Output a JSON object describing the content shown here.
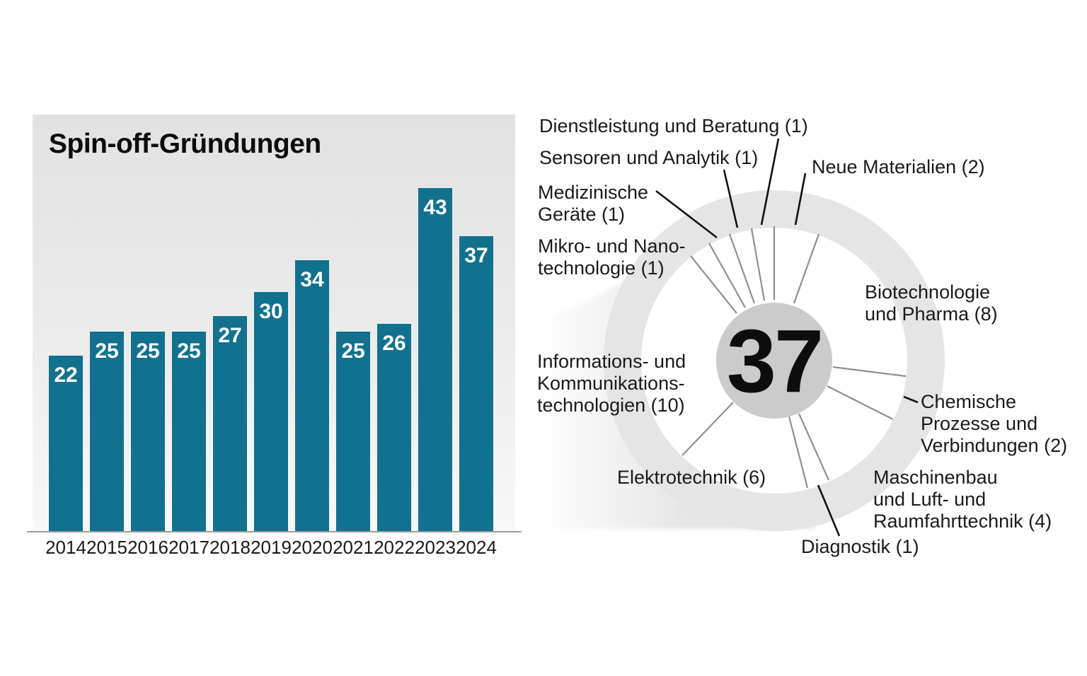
{
  "bar_chart": {
    "title": "Spin-off-Gründungen"
  },
  "donut": {
    "center_value": "37",
    "labels": {
      "dienstleistung": "Dienstleistung und Beratung (1)",
      "sensoren": "Sensoren und Analytik (1)",
      "medizinische": "Medizinische\nGeräte (1)",
      "mikro": "Mikro- und Nano-\ntechnologie (1)",
      "neue_materialien": "Neue Materialien (2)",
      "biotechnologie": "Biotechnologie\nund Pharma (8)",
      "informations": "Informations- und\nKommunikations-\ntechnologien (10)",
      "elektrotechnik": "Elektrotechnik (6)",
      "chemische": "Chemische\nProzesse und\nVerbindungen (2)",
      "maschinenbau": "Maschinenbau\nund Luft- und\nRaumfahrttechnik (4)",
      "diagnostik": "Diagnostik (1)"
    }
  },
  "colors": {
    "bar": "#11718e",
    "ring": "#e5e5e5",
    "center_circle": "#cbcbcb",
    "spoke": "#8f8f8f",
    "pointer": "#111111",
    "text": "#1a1a1a"
  },
  "chart_data": [
    {
      "type": "bar",
      "title": "Spin-off-Gründungen",
      "categories": [
        "2014",
        "2015",
        "2016",
        "2017",
        "2018",
        "2019",
        "2020",
        "2021",
        "2022",
        "2023",
        "2024"
      ],
      "values": [
        22,
        25,
        25,
        25,
        27,
        30,
        34,
        25,
        26,
        43,
        37
      ],
      "xlabel": "",
      "ylabel": "",
      "ylim": [
        0,
        45
      ],
      "grid": false,
      "value_labels": "white, bold, inside top of each bar",
      "bar_color": "#11718e",
      "background": "light gray vertical gradient panel"
    },
    {
      "type": "pie",
      "title": "",
      "center_label": "37",
      "total": 37,
      "layout": "donut ring with thin radial spokes; segments clockwise from 12 o'clock; gray comet tail fading to the left",
      "segments": [
        {
          "label": "Neue Materialien",
          "value": 2
        },
        {
          "label": "Biotechnologie und Pharma",
          "value": 8
        },
        {
          "label": "Chemische Prozesse und Verbindungen",
          "value": 2
        },
        {
          "label": "Maschinenbau und Luft- und Raumfahrttechnik",
          "value": 4
        },
        {
          "label": "Diagnostik",
          "value": 1
        },
        {
          "label": "Elektrotechnik",
          "value": 6
        },
        {
          "label": "Informations- und Kommunikationstechnologien",
          "value": 10
        },
        {
          "label": "Mikro- und Nanotechnologie",
          "value": 1
        },
        {
          "label": "Medizinische Geräte",
          "value": 1
        },
        {
          "label": "Sensoren und Analytik",
          "value": 1
        },
        {
          "label": "Dienstleistung und Beratung",
          "value": 1
        }
      ]
    }
  ]
}
